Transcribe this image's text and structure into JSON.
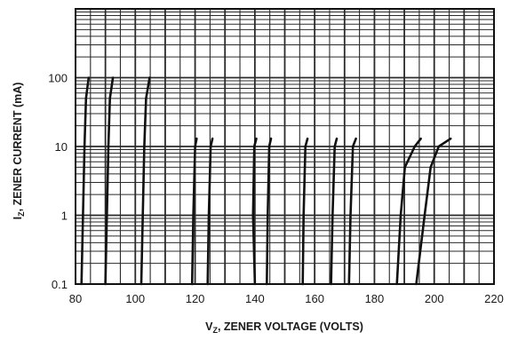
{
  "chart_data": {
    "type": "line",
    "xlabel": "VZ, ZENER VOLTAGE (VOLTS)",
    "xlabel_main": "V",
    "xlabel_sub": "Z",
    "xlabel_rest": ", ZENER VOLTAGE (VOLTS)",
    "ylabel": "IZ, ZENER CURRENT (mA)",
    "ylabel_main": "I",
    "ylabel_sub": "Z",
    "ylabel_rest": ", ZENER CURRENT (mA)",
    "x_scale": "linear",
    "y_scale": "log",
    "xlim": [
      80,
      220
    ],
    "ylim": [
      0.1,
      1000
    ],
    "x_ticks": [
      80,
      100,
      120,
      140,
      160,
      180,
      200,
      220
    ],
    "x_tick_labels": [
      "80",
      "100",
      "120",
      "140",
      "160",
      "180",
      "200",
      "220"
    ],
    "y_ticks": [
      0.1,
      1,
      10,
      100
    ],
    "y_tick_labels": [
      "0.1",
      "1",
      "10",
      "100"
    ],
    "grid": true,
    "line_color": "#111111",
    "grid_color": "#2a2a2a",
    "series": [
      {
        "x": [
          82.0,
          82.5,
          83.0,
          83.5,
          84.4
        ],
        "y": [
          0.1,
          1,
          10,
          50,
          100
        ]
      },
      {
        "x": [
          90.0,
          90.5,
          91.0,
          91.5,
          92.5
        ],
        "y": [
          0.1,
          1,
          10,
          50,
          100
        ]
      },
      {
        "x": [
          102.0,
          102.5,
          103.0,
          103.6,
          104.8
        ],
        "y": [
          0.1,
          1,
          10,
          50,
          100
        ]
      },
      {
        "x": [
          119.0,
          119.4,
          120.0,
          120.5
        ],
        "y": [
          0.1,
          1,
          10,
          13
        ]
      },
      {
        "x": [
          124.2,
          124.6,
          125.2,
          125.8
        ],
        "y": [
          0.1,
          1,
          10,
          13
        ]
      },
      {
        "x": [
          140.0,
          139.4,
          139.8,
          140.5
        ],
        "y": [
          0.1,
          1,
          10,
          13
        ]
      },
      {
        "x": [
          144.0,
          144.3,
          144.8,
          145.4
        ],
        "y": [
          0.1,
          1,
          10,
          13
        ]
      },
      {
        "x": [
          156.0,
          156.3,
          156.9,
          157.6
        ],
        "y": [
          0.1,
          1,
          10,
          13
        ]
      },
      {
        "x": [
          165.5,
          166.0,
          166.7,
          167.4
        ],
        "y": [
          0.1,
          1,
          10,
          13
        ]
      },
      {
        "x": [
          171.5,
          172.0,
          172.8,
          173.8
        ],
        "y": [
          0.1,
          1,
          10,
          13
        ]
      },
      {
        "x": [
          187.5,
          188.8,
          190.2,
          193.5,
          195.5
        ],
        "y": [
          0.1,
          1,
          5,
          10,
          13
        ]
      },
      {
        "x": [
          194.0,
          196.8,
          198.8,
          201.5,
          205.5
        ],
        "y": [
          0.1,
          1,
          5,
          10,
          13
        ]
      }
    ]
  }
}
